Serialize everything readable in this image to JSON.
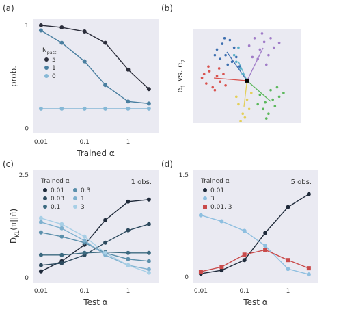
{
  "chart_data": [
    {
      "type": "line",
      "label": "(a)",
      "x_label": "Trained α",
      "y_label": "prob.",
      "xscale": "log",
      "x": [
        0.01,
        0.03,
        0.1,
        0.3,
        1,
        3
      ],
      "xlim": [
        0.0065,
        5
      ],
      "xticks": [
        0.01,
        0.1,
        1
      ],
      "ylim": [
        -0.05,
        1.06
      ],
      "yticks": [
        0,
        1
      ],
      "grid": false,
      "legend_title": "N_past",
      "series": [
        {
          "name": "5",
          "color": "#2b2d3a",
          "values": [
            1.0,
            0.98,
            0.94,
            0.83,
            0.57,
            0.38
          ]
        },
        {
          "name": "1",
          "color": "#4a7fa0",
          "values": [
            0.95,
            0.83,
            0.65,
            0.42,
            0.26,
            0.24
          ]
        },
        {
          "name": "0",
          "color": "#86b8d6",
          "values": [
            0.19,
            0.19,
            0.19,
            0.19,
            0.19,
            0.19
          ]
        }
      ]
    },
    {
      "type": "scatter",
      "label": "(b)",
      "y_label": "e_1 vs. e_2",
      "xlim": [
        0,
        1
      ],
      "ylim": [
        0,
        1
      ],
      "series": [
        {
          "color": "#d9534f",
          "x": [
            0.08,
            0.12,
            0.15,
            0.18,
            0.22,
            0.25,
            0.28,
            0.14,
            0.2,
            0.3,
            0.1,
            0.24
          ],
          "y": [
            0.48,
            0.42,
            0.55,
            0.38,
            0.5,
            0.44,
            0.52,
            0.6,
            0.35,
            0.4,
            0.52,
            0.58
          ]
        },
        {
          "color": "#3d6fb0",
          "x": [
            0.22,
            0.27,
            0.3,
            0.34,
            0.38,
            0.25,
            0.32,
            0.4,
            0.29,
            0.36,
            0.2,
            0.43
          ],
          "y": [
            0.78,
            0.84,
            0.72,
            0.88,
            0.8,
            0.68,
            0.62,
            0.7,
            0.9,
            0.65,
            0.72,
            0.6
          ]
        },
        {
          "color": "#a07cc8",
          "x": [
            0.52,
            0.57,
            0.62,
            0.66,
            0.7,
            0.75,
            0.6,
            0.68,
            0.55,
            0.72,
            0.8,
            0.64
          ],
          "y": [
            0.82,
            0.9,
            0.78,
            0.86,
            0.72,
            0.8,
            0.68,
            0.62,
            0.7,
            0.9,
            0.85,
            0.95
          ]
        },
        {
          "color": "#5cb85c",
          "x": [
            0.62,
            0.67,
            0.72,
            0.76,
            0.8,
            0.7,
            0.65,
            0.78,
            0.74,
            0.84,
            0.68,
            0.6
          ],
          "y": [
            0.3,
            0.22,
            0.35,
            0.18,
            0.28,
            0.1,
            0.15,
            0.38,
            0.25,
            0.32,
            0.05,
            0.2
          ]
        },
        {
          "color": "#e3cf5a",
          "x": [
            0.42,
            0.46,
            0.5,
            0.44,
            0.52,
            0.48,
            0.4,
            0.54
          ],
          "y": [
            0.2,
            0.1,
            0.25,
            0.02,
            0.15,
            0.06,
            0.28,
            0.32
          ]
        },
        {
          "color": "#5ab0c8",
          "x": [
            0.4,
            0.44,
            0.38,
            0.46,
            0.42
          ],
          "y": [
            0.65,
            0.58,
            0.72,
            0.52,
            0.8
          ]
        },
        {
          "color": "#000000",
          "marker": "s",
          "x": [
            0.5
          ],
          "y": [
            0.45
          ]
        }
      ]
    },
    {
      "type": "line",
      "label": "(c)",
      "x_label": "Test α",
      "y_label": "D_KL(π||π̂)",
      "xscale": "log",
      "x": [
        0.01,
        0.03,
        0.1,
        0.3,
        1,
        3
      ],
      "xlim": [
        0.0065,
        5
      ],
      "xticks": [
        0.01,
        0.1,
        1
      ],
      "ylim": [
        -0.12,
        2.63
      ],
      "yticks": [
        0,
        2.5
      ],
      "grid": false,
      "legend_title": "Trained α",
      "annotation": "1 obs.",
      "series": [
        {
          "name": "0.01",
          "color": "#1f2a3a",
          "values": [
            0.15,
            0.4,
            0.8,
            1.4,
            1.85,
            1.9
          ]
        },
        {
          "name": "0.03",
          "color": "#2d4a5e",
          "values": [
            0.3,
            0.35,
            0.55,
            0.85,
            1.15,
            1.3
          ]
        },
        {
          "name": "0.1",
          "color": "#3c6a80",
          "values": [
            0.55,
            0.55,
            0.6,
            0.62,
            0.6,
            0.6
          ]
        },
        {
          "name": "0.3",
          "color": "#5a8fab",
          "values": [
            1.1,
            1.0,
            0.85,
            0.6,
            0.45,
            0.4
          ]
        },
        {
          "name": "1",
          "color": "#7fb1cf",
          "values": [
            1.35,
            1.2,
            0.9,
            0.55,
            0.3,
            0.2
          ]
        },
        {
          "name": "3",
          "color": "#a7cfe6",
          "values": [
            1.45,
            1.3,
            1.0,
            0.6,
            0.3,
            0.12
          ]
        }
      ]
    },
    {
      "type": "line",
      "label": "(d)",
      "x_label": "Test α",
      "xscale": "log",
      "x": [
        0.01,
        0.03,
        0.1,
        0.3,
        1,
        3
      ],
      "xlim": [
        0.0065,
        5
      ],
      "xticks": [
        0.01,
        0.1,
        1
      ],
      "ylim": [
        -0.08,
        1.58
      ],
      "yticks": [
        0,
        1.5
      ],
      "grid": false,
      "legend_title": "Trained α",
      "annotation": "5 obs.",
      "series": [
        {
          "name": "0.01",
          "color": "#1f2a3a",
          "values": [
            0.05,
            0.1,
            0.25,
            0.65,
            1.03,
            1.22
          ]
        },
        {
          "name": "3",
          "color": "#8ebfe0",
          "values": [
            0.91,
            0.82,
            0.68,
            0.46,
            0.12,
            0.04
          ]
        },
        {
          "name": "0.01, 3",
          "color": "#c94a4a",
          "marker": "s",
          "values": [
            0.08,
            0.15,
            0.33,
            0.4,
            0.25,
            0.13
          ]
        }
      ]
    }
  ]
}
